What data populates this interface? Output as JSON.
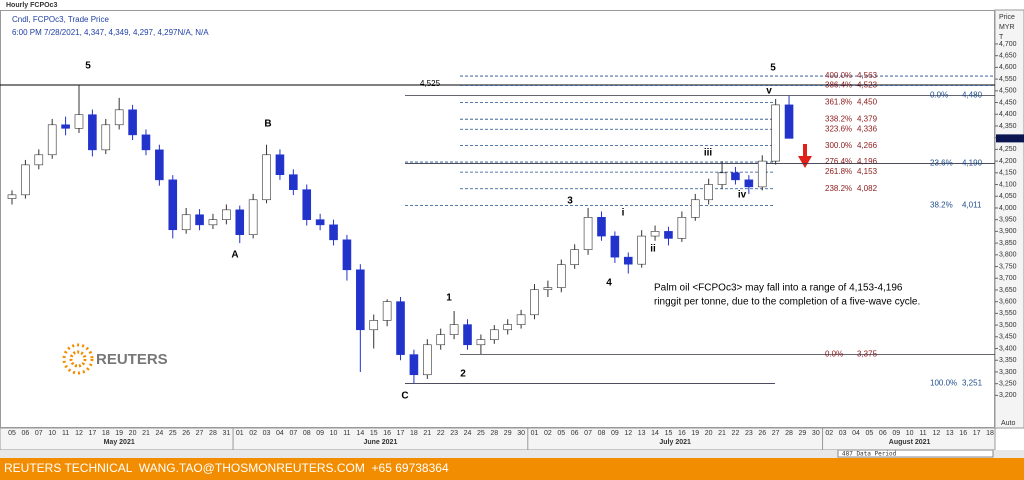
{
  "chart_data": {
    "type": "candlestick",
    "title": "Hourly FCPOc3",
    "subtitle": "Cndl, FCPOc3, Trade Price",
    "status_line": "6:00 PM 7/28/2021, 4,347, 4,349, 4,297, 4,297N/A, N/A",
    "y_axis_title": [
      "Price",
      "MYR",
      "T"
    ],
    "categories": [
      "05",
      "06",
      "07",
      "10",
      "11",
      "12",
      "17",
      "18",
      "19",
      "20",
      "21",
      "24",
      "25",
      "26",
      "27",
      "28",
      "31",
      "01",
      "02",
      "03",
      "04",
      "07",
      "08",
      "09",
      "10",
      "11",
      "14",
      "15",
      "16",
      "17",
      "18",
      "21",
      "22",
      "23",
      "24",
      "25",
      "28",
      "29",
      "30",
      "01",
      "02",
      "05",
      "06",
      "07",
      "08",
      "09",
      "12",
      "13",
      "14",
      "15",
      "16",
      "19",
      "20",
      "21",
      "22",
      "23",
      "26",
      "27",
      "28",
      "29",
      "30",
      "02",
      "03",
      "04",
      "05",
      "06",
      "09",
      "10",
      "11",
      "12",
      "13",
      "16",
      "17",
      "18"
    ],
    "months": [
      "May 2021",
      "June 2021",
      "July 2021",
      "August 2021"
    ],
    "open": [
      4040,
      4056,
      4184,
      4227,
      4355,
      4340,
      4398,
      4248,
      4355,
      4419,
      4312,
      4248,
      4120,
      3907,
      3971,
      3928,
      3950,
      3992,
      3886,
      4035,
      4227,
      4142,
      4078,
      3950,
      3928,
      3864,
      3736,
      3480,
      3520,
      3600,
      3374,
      3288,
      3416,
      3459,
      3502,
      3416,
      3438,
      3480,
      3502,
      3544,
      3651,
      3660,
      3758,
      3822,
      3960,
      3880,
      3790,
      3760,
      3880,
      3900,
      3870,
      3960,
      4035,
      4100,
      4150,
      4120,
      4090,
      4200,
      4440,
      null,
      null,
      null,
      null,
      null,
      null,
      null,
      null,
      null,
      null,
      null,
      null,
      null,
      null,
      null
    ],
    "high": [
      4075,
      4205,
      4250,
      4380,
      4390,
      4525,
      4420,
      4380,
      4470,
      4440,
      4335,
      4270,
      4140,
      4000,
      3995,
      3975,
      4015,
      4010,
      4060,
      4270,
      4250,
      4165,
      4100,
      3975,
      3950,
      3885,
      3760,
      3545,
      3610,
      3620,
      3395,
      3440,
      3485,
      3560,
      3525,
      3460,
      3500,
      3525,
      3565,
      3675,
      3690,
      3780,
      3845,
      4000,
      3985,
      3900,
      3810,
      3905,
      3925,
      3920,
      3985,
      4060,
      4125,
      4200,
      4175,
      4140,
      4225,
      4465,
      4480,
      null,
      null,
      null,
      null,
      null,
      null,
      null,
      null,
      null,
      null,
      null,
      null,
      null,
      null,
      null
    ],
    "low": [
      4015,
      4040,
      4165,
      4210,
      4310,
      4320,
      4220,
      4230,
      4335,
      4290,
      4225,
      4095,
      3870,
      3890,
      3905,
      3910,
      3930,
      3850,
      3870,
      4020,
      4120,
      4055,
      3925,
      3905,
      3840,
      3690,
      3300,
      3400,
      3495,
      3350,
      3251,
      3270,
      3395,
      3440,
      3395,
      3375,
      3420,
      3460,
      3485,
      3525,
      3620,
      3640,
      3740,
      3800,
      3860,
      3765,
      3720,
      3745,
      3860,
      3840,
      3855,
      3945,
      4015,
      4080,
      4100,
      4060,
      4075,
      4185,
      4297,
      null,
      null,
      null,
      null,
      null,
      null,
      null,
      null,
      null,
      null,
      null,
      null,
      null,
      null,
      null
    ],
    "close": [
      4056,
      4184,
      4227,
      4355,
      4340,
      4398,
      4248,
      4355,
      4419,
      4312,
      4248,
      4120,
      3907,
      3971,
      3928,
      3950,
      3992,
      3886,
      4035,
      4227,
      4142,
      4078,
      3950,
      3928,
      3864,
      3736,
      3480,
      3520,
      3600,
      3374,
      3288,
      3416,
      3459,
      3502,
      3416,
      3438,
      3480,
      3502,
      3544,
      3651,
      3660,
      3758,
      3822,
      3960,
      3880,
      3790,
      3760,
      3880,
      3900,
      3870,
      3960,
      4035,
      4100,
      4150,
      4120,
      4090,
      4200,
      4440,
      4297,
      null,
      null,
      null,
      null,
      null,
      null,
      null,
      null,
      null,
      null,
      null,
      null,
      null,
      null,
      null
    ],
    "up_color": "#ffffff",
    "down_color": "#2233cc",
    "ylim": [
      3065,
      4845
    ],
    "yticks": [
      {
        "value": 3200,
        "label": "3,200"
      },
      {
        "value": 3250,
        "label": "3,250"
      },
      {
        "value": 3300,
        "label": "3,300"
      },
      {
        "value": 3350,
        "label": "3,350"
      },
      {
        "value": 3400,
        "label": "3,400"
      },
      {
        "value": 3450,
        "label": "3,450"
      },
      {
        "value": 3500,
        "label": "3,500"
      },
      {
        "value": 3550,
        "label": "3,550"
      },
      {
        "value": 3600,
        "label": "3,600"
      },
      {
        "value": 3650,
        "label": "3,650"
      },
      {
        "value": 3700,
        "label": "3,700"
      },
      {
        "value": 3750,
        "label": "3,750"
      },
      {
        "value": 3800,
        "label": "3,800"
      },
      {
        "value": 3850,
        "label": "3,850"
      },
      {
        "value": 3900,
        "label": "3,900"
      },
      {
        "value": 3950,
        "label": "3,950"
      },
      {
        "value": 4000,
        "label": "4,000"
      },
      {
        "value": 4050,
        "label": "4,050"
      },
      {
        "value": 4100,
        "label": "4,100"
      },
      {
        "value": 4150,
        "label": "4,150"
      },
      {
        "value": 4200,
        "label": "4,200"
      },
      {
        "value": 4250,
        "label": "4,250"
      },
      {
        "value": 4300,
        "label": "4,300"
      },
      {
        "value": 4350,
        "label": "4,350"
      },
      {
        "value": 4400,
        "label": "4,400"
      },
      {
        "value": 4450,
        "label": "4,450"
      },
      {
        "value": 4500,
        "label": "4,500"
      },
      {
        "value": 4550,
        "label": "4,550"
      },
      {
        "value": 4600,
        "label": "4,600"
      },
      {
        "value": 4650,
        "label": "4,650"
      },
      {
        "value": 4700,
        "label": "4,700"
      }
    ],
    "grid": false,
    "peak_line": {
      "value": 4525,
      "value_label": "4,525"
    },
    "levels": [
      {
        "label": "400.0%",
        "value": 4563,
        "value_label": "4,563",
        "color": "#8b1a1a"
      },
      {
        "label": "386.4%",
        "value": 4523,
        "value_label": "4,523",
        "color": "#8b1a1a"
      },
      {
        "label": "361.8%",
        "value": 4450,
        "value_label": "4,450",
        "color": "#8b1a1a"
      },
      {
        "label": "338.2%",
        "value": 4379,
        "value_label": "4,379",
        "color": "#8b1a1a"
      },
      {
        "label": "323.6%",
        "value": 4336,
        "value_label": "4,336",
        "color": "#8b1a1a"
      },
      {
        "label": "300.0%",
        "value": 4266,
        "value_label": "4,266",
        "color": "#8b1a1a"
      },
      {
        "label": "276.4%",
        "value": 4196,
        "value_label": "4,196",
        "color": "#8b1a1a"
      },
      {
        "label": "261.8%",
        "value": 4153,
        "value_label": "4,153",
        "color": "#8b1a1a"
      },
      {
        "label": "238.2%",
        "value": 4082,
        "value_label": "4,082",
        "color": "#8b1a1a"
      },
      {
        "label": "0.0%",
        "value": 4480,
        "value_label": "4,480",
        "color": "#1f4e8c"
      },
      {
        "label": "23.6%",
        "value": 4190,
        "value_label": "4,190",
        "color": "#1f4e8c"
      },
      {
        "label": "38.2%",
        "value": 4011,
        "value_label": "4,011",
        "color": "#1f4e8c"
      },
      {
        "label": "0.0%",
        "value": 3375,
        "value_label": "3,375",
        "color": "#8b1a1a"
      },
      {
        "label": "100.0%",
        "value": 3251,
        "value_label": "3,251",
        "color": "#1f4e8c"
      }
    ],
    "annotations": [
      "5",
      "B",
      "A",
      "C",
      "1",
      "2",
      "3",
      "4",
      "i",
      "ii",
      "iii",
      "iv",
      "v",
      "5"
    ],
    "note": [
      "Palm oil <FCPOc3> may fall into a range of 4,153-4,196",
      "ringgit per tonne, due to the completion of a five-wave cycle."
    ],
    "data_period": "487 Data Period",
    "scale_mode": "Auto"
  },
  "logo": "REUTERS",
  "footer": "REUTERS TECHNICAL  WANG.TAO@THOSMONREUTERS.COM  +65 69738364"
}
